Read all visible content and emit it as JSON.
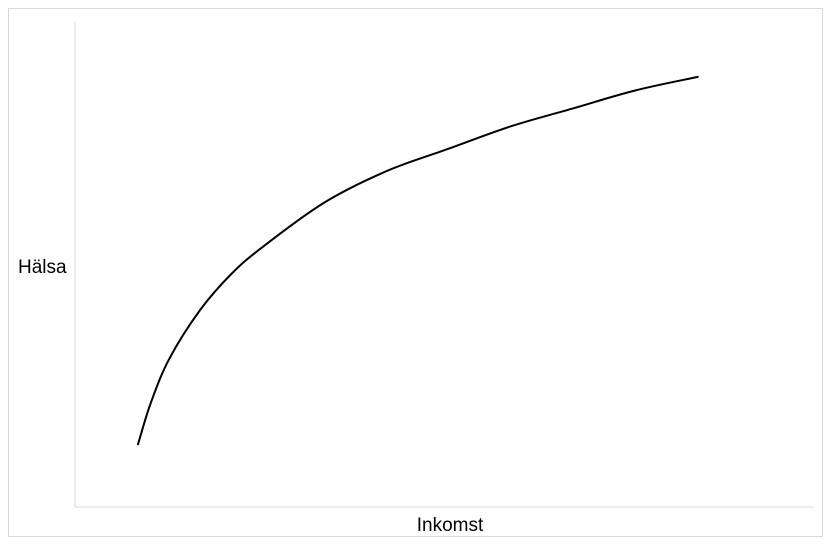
{
  "chart_data": {
    "type": "line",
    "title": "",
    "xlabel": "Inkomst",
    "ylabel": "Hälsa",
    "xlim": [
      0,
      10
    ],
    "ylim": [
      0,
      10
    ],
    "x_ticks_shown": false,
    "y_ticks_shown": false,
    "grid": false,
    "legend": "none",
    "series": [
      {
        "color": "#000000",
        "x": [
          0.0,
          0.2,
          0.5,
          1.0,
          1.5,
          2.0,
          3.0,
          4.0,
          5.0,
          6.0,
          7.0,
          8.0,
          9.0
        ],
        "y": [
          1.4,
          2.3,
          3.3,
          4.4,
          5.2,
          5.8,
          6.8,
          7.5,
          8.0,
          8.5,
          8.9,
          9.3,
          9.6
        ]
      }
    ]
  }
}
